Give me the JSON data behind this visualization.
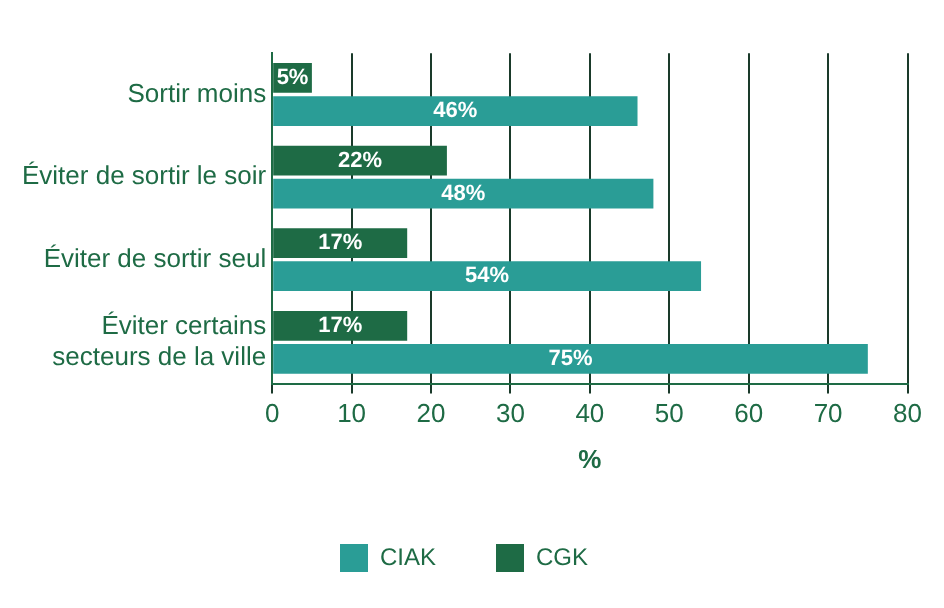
{
  "chart_data": {
    "type": "bar",
    "orientation": "horizontal",
    "xlabel": "%",
    "categories": [
      "Sortir moins",
      "Éviter de sortir le soir",
      "Éviter de sortir seul",
      "Éviter certains secteurs de la ville"
    ],
    "series": [
      {
        "name": "CGK",
        "color": "#1e6b45",
        "values": [
          5,
          22,
          17,
          17
        ],
        "value_labels": [
          "5%",
          "22%",
          "17%",
          "17%"
        ]
      },
      {
        "name": "CIAK",
        "color": "#2a9d96",
        "values": [
          46,
          48,
          54,
          75
        ],
        "value_labels": [
          "46%",
          "48%",
          "54%",
          "75%"
        ]
      }
    ],
    "xlim": [
      0,
      80
    ],
    "xticks": [
      0,
      10,
      20,
      30,
      40,
      50,
      60,
      70,
      80
    ],
    "grid": "x",
    "legend": "bottom"
  }
}
